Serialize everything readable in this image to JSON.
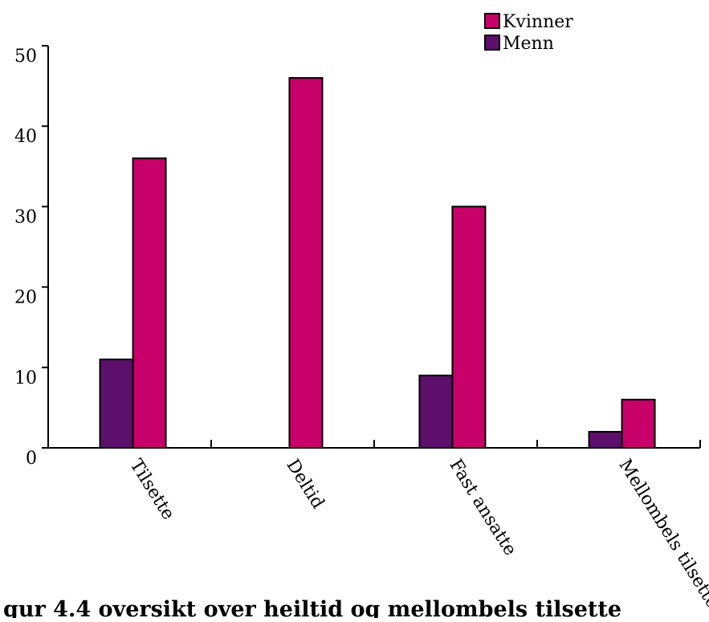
{
  "chart_data": {
    "type": "bar",
    "title": "",
    "xlabel": "",
    "ylabel": "",
    "categories": [
      "Tilsette",
      "Deltid",
      "Fast ansatte",
      "Mellombels tilsette"
    ],
    "series": [
      {
        "name": "Menn",
        "values": [
          11,
          0,
          9,
          2
        ]
      },
      {
        "name": "Kvinner",
        "values": [
          36,
          46,
          30,
          6
        ]
      }
    ],
    "ylim": [
      0,
      50
    ],
    "yticks": [
      0,
      10,
      20,
      30,
      40,
      50
    ],
    "grid": false,
    "legend_position": "top-right",
    "legend_order": [
      "Kvinner",
      "Menn"
    ],
    "colors": {
      "Menn": "#5c0f6b",
      "Kvinner": "#c8006a",
      "outline": "#000000"
    }
  },
  "caption": "gur 4.4 oversikt over heiltid og mellombels tilsette"
}
